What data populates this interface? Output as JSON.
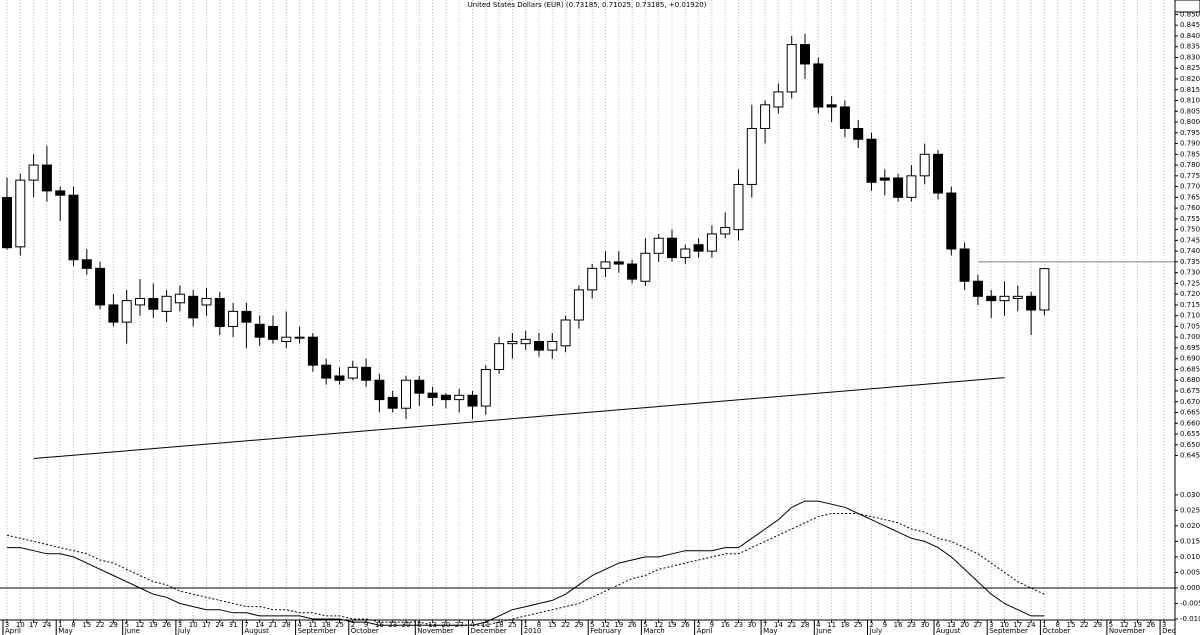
{
  "chart_data": {
    "type": "candlestick",
    "title": "United States Dollars (EUR) (0.73185, 0.71025, 0.73185, +0.01920)",
    "grid": true,
    "color_up": "#ffffff",
    "color_down": "#000000",
    "x_day_labels": [
      3,
      10,
      17,
      24,
      1,
      8,
      15,
      22,
      29,
      5,
      12,
      19,
      26,
      3,
      10,
      17,
      24,
      31,
      7,
      14,
      21,
      28,
      4,
      11,
      18,
      25,
      2,
      9,
      16,
      23,
      30,
      6,
      13,
      20,
      27,
      4,
      11,
      18,
      25,
      1,
      8,
      15,
      22,
      29,
      5,
      12,
      19,
      26,
      5,
      12,
      19,
      26,
      2,
      9,
      16,
      23,
      30,
      7,
      14,
      21,
      28,
      4,
      11,
      18,
      25,
      2,
      9,
      16,
      23,
      30,
      6,
      13,
      20,
      27,
      3,
      10,
      17,
      24,
      1,
      8,
      15,
      22,
      29,
      5,
      12,
      19,
      26,
      3
    ],
    "months": [
      {
        "label": "April",
        "index": 0
      },
      {
        "label": "May",
        "index": 4
      },
      {
        "label": "June",
        "index": 9
      },
      {
        "label": "July",
        "index": 13
      },
      {
        "label": "August",
        "index": 18
      },
      {
        "label": "September",
        "index": 22
      },
      {
        "label": "October",
        "index": 26
      },
      {
        "label": "November",
        "index": 31
      },
      {
        "label": "December",
        "index": 35
      },
      {
        "label": "2010",
        "index": 39
      },
      {
        "label": "February",
        "index": 44
      },
      {
        "label": "March",
        "index": 48
      },
      {
        "label": "April",
        "index": 52
      },
      {
        "label": "May",
        "index": 57
      },
      {
        "label": "June",
        "index": 61
      },
      {
        "label": "July",
        "index": 65
      },
      {
        "label": "August",
        "index": 70
      },
      {
        "label": "September",
        "index": 74
      },
      {
        "label": "October",
        "index": 78
      },
      {
        "label": "November",
        "index": 83
      },
      {
        "label": "December",
        "index": 87
      }
    ],
    "candles": {
      "open": [
        0.7649,
        0.742,
        0.773,
        0.78,
        0.768,
        0.766,
        0.736,
        0.732,
        0.715,
        0.707,
        0.715,
        0.718,
        0.712,
        0.716,
        0.719,
        0.715,
        0.718,
        0.705,
        0.712,
        0.706,
        0.705,
        0.698,
        0.7,
        0.7,
        0.687,
        0.682,
        0.681,
        0.686,
        0.68,
        0.672,
        0.667,
        0.68,
        0.674,
        0.673,
        0.671,
        0.673,
        0.668,
        0.685,
        0.697,
        0.697,
        0.698,
        0.694,
        0.696,
        0.708,
        0.722,
        0.732,
        0.735,
        0.734,
        0.726,
        0.739,
        0.746,
        0.737,
        0.743,
        0.74,
        0.748,
        0.75,
        0.771,
        0.797,
        0.807,
        0.814,
        0.836,
        0.827,
        0.808,
        0.807,
        0.797,
        0.792,
        0.774,
        0.774,
        0.765,
        0.775,
        0.785,
        0.767,
        0.741,
        0.726,
        0.719,
        0.717,
        0.718,
        0.719,
        0.71265
      ],
      "high": [
        0.7742,
        0.776,
        0.785,
        0.789,
        0.77,
        0.77,
        0.741,
        0.735,
        0.72,
        0.722,
        0.727,
        0.725,
        0.722,
        0.724,
        0.722,
        0.723,
        0.721,
        0.716,
        0.716,
        0.71,
        0.71,
        0.712,
        0.705,
        0.702,
        0.69,
        0.686,
        0.689,
        0.69,
        0.683,
        0.675,
        0.682,
        0.682,
        0.677,
        0.674,
        0.676,
        0.675,
        0.687,
        0.7,
        0.702,
        0.703,
        0.702,
        0.702,
        0.71,
        0.724,
        0.734,
        0.74,
        0.74,
        0.736,
        0.746,
        0.748,
        0.75,
        0.743,
        0.746,
        0.752,
        0.758,
        0.778,
        0.808,
        0.81,
        0.818,
        0.84,
        0.841,
        0.83,
        0.812,
        0.81,
        0.801,
        0.795,
        0.778,
        0.776,
        0.78,
        0.79,
        0.787,
        0.77,
        0.744,
        0.729,
        0.722,
        0.726,
        0.724,
        0.721,
        0.73185
      ],
      "low": [
        0.7407,
        0.738,
        0.765,
        0.763,
        0.754,
        0.733,
        0.729,
        0.713,
        0.705,
        0.697,
        0.71,
        0.709,
        0.707,
        0.712,
        0.705,
        0.71,
        0.701,
        0.7,
        0.695,
        0.696,
        0.697,
        0.695,
        0.697,
        0.684,
        0.678,
        0.678,
        0.68,
        0.677,
        0.665,
        0.665,
        0.662,
        0.668,
        0.668,
        0.667,
        0.665,
        0.662,
        0.664,
        0.683,
        0.69,
        0.694,
        0.691,
        0.69,
        0.693,
        0.704,
        0.718,
        0.728,
        0.73,
        0.725,
        0.724,
        0.735,
        0.735,
        0.734,
        0.737,
        0.737,
        0.746,
        0.745,
        0.765,
        0.79,
        0.804,
        0.811,
        0.82,
        0.804,
        0.8,
        0.793,
        0.788,
        0.768,
        0.766,
        0.763,
        0.763,
        0.771,
        0.764,
        0.738,
        0.722,
        0.715,
        0.709,
        0.71,
        0.712,
        0.701,
        0.71025
      ],
      "close": [
        0.7416,
        0.773,
        0.78,
        0.768,
        0.766,
        0.736,
        0.732,
        0.715,
        0.707,
        0.717,
        0.718,
        0.713,
        0.719,
        0.72,
        0.709,
        0.718,
        0.705,
        0.712,
        0.707,
        0.7,
        0.699,
        0.7,
        0.7,
        0.687,
        0.681,
        0.68,
        0.686,
        0.68,
        0.671,
        0.667,
        0.68,
        0.674,
        0.672,
        0.671,
        0.673,
        0.668,
        0.685,
        0.697,
        0.698,
        0.699,
        0.694,
        0.698,
        0.708,
        0.722,
        0.732,
        0.735,
        0.734,
        0.727,
        0.739,
        0.746,
        0.737,
        0.741,
        0.74,
        0.748,
        0.751,
        0.771,
        0.797,
        0.808,
        0.814,
        0.836,
        0.827,
        0.807,
        0.807,
        0.797,
        0.792,
        0.772,
        0.773,
        0.765,
        0.775,
        0.785,
        0.767,
        0.741,
        0.726,
        0.719,
        0.717,
        0.719,
        0.719,
        0.71265,
        0.73185
      ]
    },
    "ylim": [
      0.642,
      0.853
    ],
    "yticks": [
      {
        "value": 0.645,
        "label": "0.645"
      },
      {
        "value": 0.65,
        "label": "0.650"
      },
      0.655,
      {
        "value": 0.66,
        "label": "0.660"
      },
      0.665,
      {
        "value": 0.67,
        "label": "0.670"
      },
      0.675,
      {
        "value": 0.68,
        "label": "0.680"
      },
      0.685,
      {
        "value": 0.69,
        "label": "0.690"
      },
      0.695,
      {
        "value": 0.7,
        "label": "0.700"
      },
      0.705,
      {
        "value": 0.71,
        "label": "0.710"
      },
      0.715,
      {
        "value": 0.72,
        "label": "0.720"
      },
      0.725,
      {
        "value": 0.73,
        "label": "0.730"
      },
      0.735,
      {
        "value": 0.74,
        "label": "0.740"
      },
      0.745,
      {
        "value": 0.75,
        "label": "0.750"
      },
      0.755,
      {
        "value": 0.76,
        "label": "0.760"
      },
      0.765,
      {
        "value": 0.77,
        "label": "0.770"
      },
      0.775,
      {
        "value": 0.78,
        "label": "0.780"
      },
      0.785,
      {
        "value": 0.79,
        "label": "0.790"
      },
      0.795,
      {
        "value": 0.8,
        "label": "0.800"
      },
      0.805,
      {
        "value": 0.81,
        "label": "0.810"
      },
      0.815,
      {
        "value": 0.82,
        "label": "0.820"
      },
      0.825,
      {
        "value": 0.83,
        "label": "0.830"
      },
      0.835,
      {
        "value": 0.84,
        "label": "0.840"
      },
      0.845,
      {
        "value": 0.85,
        "label": "0.850"
      }
    ],
    "trendlines": [
      {
        "color": "#000000",
        "points": [
          {
            "index": 2,
            "value": 0.6436
          },
          {
            "index": 75,
            "value": 0.6812
          }
        ]
      },
      {
        "color": "#808080",
        "points": [
          {
            "index": 73,
            "value": 0.735
          },
          {
            "index": 88,
            "value": 0.735
          }
        ]
      }
    ],
    "macd": {
      "ylim": [
        -0.0142,
        0.0348
      ],
      "yticks": [
        {
          "value": -0.01,
          "label": "-0.010"
        },
        -0.005,
        {
          "value": 0,
          "label": "0.000"
        },
        0.005,
        {
          "value": 0.01,
          "label": "0.010"
        },
        0.015,
        {
          "value": 0.02,
          "label": "0.020"
        },
        0.025,
        {
          "value": 0.03,
          "label": "0.030"
        }
      ],
      "series": [
        {
          "color": "#000000",
          "dashed": false,
          "values": [
            0.013,
            0.013,
            0.012,
            0.011,
            0.011,
            0.01,
            0.008,
            0.006,
            0.004,
            0.002,
            0.0,
            -0.002,
            -0.003,
            -0.005,
            -0.006,
            -0.007,
            -0.007,
            -0.008,
            -0.008,
            -0.009,
            -0.009,
            -0.009,
            -0.009,
            -0.01,
            -0.01,
            -0.01,
            -0.011,
            -0.011,
            -0.012,
            -0.012,
            -0.012,
            -0.012,
            -0.012,
            -0.012,
            -0.012,
            -0.012,
            -0.011,
            -0.009,
            -0.007,
            -0.006,
            -0.005,
            -0.004,
            -0.002,
            0.001,
            0.004,
            0.006,
            0.008,
            0.009,
            0.01,
            0.01,
            0.011,
            0.012,
            0.012,
            0.012,
            0.013,
            0.013,
            0.016,
            0.019,
            0.022,
            0.026,
            0.028,
            0.028,
            0.027,
            0.026,
            0.024,
            0.022,
            0.02,
            0.018,
            0.016,
            0.015,
            0.013,
            0.01,
            0.006,
            0.002,
            -0.002,
            -0.005,
            -0.007,
            -0.009,
            -0.009
          ]
        },
        {
          "color": "#000000",
          "dashed": true,
          "values": [
            0.017,
            0.016,
            0.015,
            0.014,
            0.013,
            0.012,
            0.011,
            0.009,
            0.008,
            0.006,
            0.004,
            0.002,
            0.001,
            -0.001,
            -0.002,
            -0.003,
            -0.004,
            -0.005,
            -0.006,
            -0.006,
            -0.007,
            -0.007,
            -0.008,
            -0.008,
            -0.009,
            -0.009,
            -0.01,
            -0.01,
            -0.011,
            -0.011,
            -0.011,
            -0.011,
            -0.012,
            -0.012,
            -0.012,
            -0.012,
            -0.012,
            -0.011,
            -0.01,
            -0.009,
            -0.008,
            -0.007,
            -0.006,
            -0.005,
            -0.003,
            -0.001,
            0.001,
            0.003,
            0.004,
            0.006,
            0.007,
            0.008,
            0.009,
            0.01,
            0.011,
            0.011,
            0.013,
            0.015,
            0.017,
            0.019,
            0.021,
            0.023,
            0.024,
            0.024,
            0.024,
            0.023,
            0.022,
            0.021,
            0.019,
            0.018,
            0.016,
            0.015,
            0.013,
            0.011,
            0.008,
            0.005,
            0.002,
            0.0,
            -0.002
          ]
        }
      ]
    }
  }
}
